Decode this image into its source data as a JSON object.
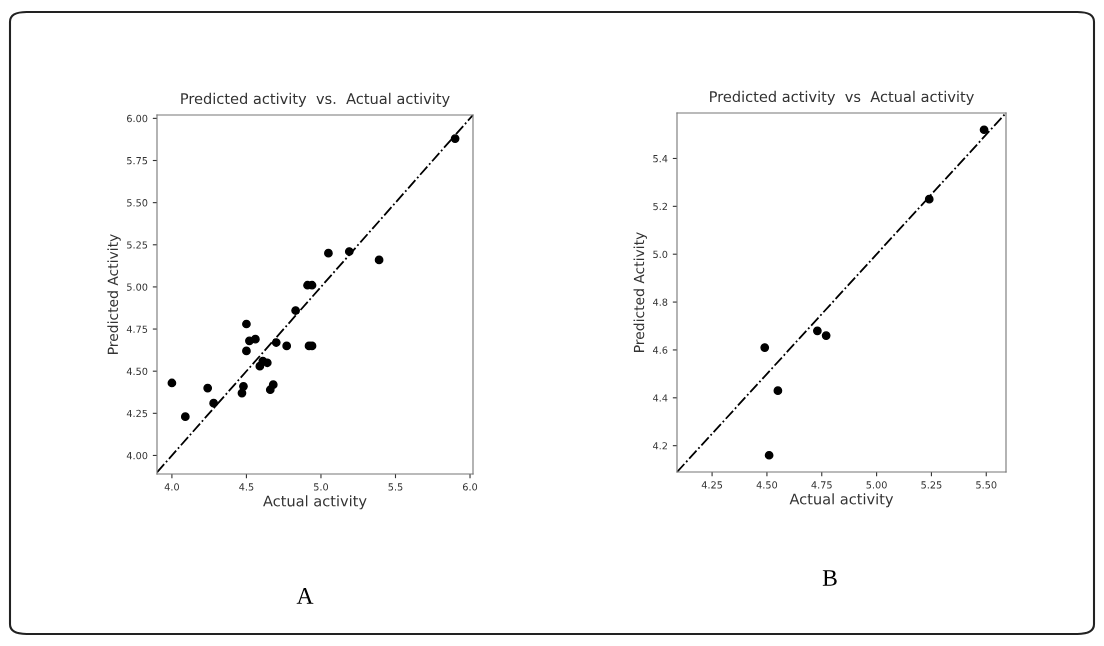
{
  "chart_data": [
    {
      "type": "scatter",
      "title": "Predicted activity  vs.  Actual activity",
      "xlabel": "Actual activity",
      "ylabel": "Predicted Activity",
      "annotations": [
        "A"
      ],
      "xlim": [
        3.9,
        6.02
      ],
      "ylim": [
        3.89,
        6.02
      ],
      "xticks": [
        {
          "value": 4.0,
          "label": "4.0"
        },
        {
          "value": 4.5,
          "label": "4.5"
        },
        {
          "value": 5.0,
          "label": "5.0"
        },
        {
          "value": 5.5,
          "label": "5.5"
        },
        {
          "value": 6.0,
          "label": "6.0"
        }
      ],
      "yticks": [
        {
          "value": 4.0,
          "label": "4.00"
        },
        {
          "value": 4.25,
          "label": "4.25"
        },
        {
          "value": 4.5,
          "label": "4.50"
        },
        {
          "value": 4.75,
          "label": "4.75"
        },
        {
          "value": 5.0,
          "label": "5.00"
        },
        {
          "value": 5.25,
          "label": "5.25"
        },
        {
          "value": 5.5,
          "label": "5.50"
        },
        {
          "value": 5.75,
          "label": "5.75"
        },
        {
          "value": 6.0,
          "label": "6.00"
        }
      ],
      "grid": false,
      "series": [
        {
          "marker": "circle",
          "color": "#000000",
          "x": [
            5.9,
            5.05,
            5.19,
            5.39,
            4.91,
            4.94,
            4.83,
            4.5,
            4.52,
            4.56,
            4.5,
            4.7,
            4.77,
            4.92,
            4.94,
            4.61,
            4.64,
            4.59,
            4.0,
            4.24,
            4.28,
            4.09,
            4.48,
            4.47,
            4.68,
            4.66
          ],
          "values": [
            5.88,
            5.2,
            5.21,
            5.16,
            5.01,
            5.01,
            4.86,
            4.78,
            4.68,
            4.69,
            4.62,
            4.67,
            4.65,
            4.65,
            4.65,
            4.56,
            4.55,
            4.53,
            4.43,
            4.4,
            4.31,
            4.23,
            4.41,
            4.37,
            4.42,
            4.39
          ]
        },
        {
          "type": "line",
          "color": "#000000",
          "line_style": "dashed",
          "x": [
            3.9,
            6.02
          ],
          "values": [
            3.9,
            6.02
          ]
        }
      ]
    },
    {
      "type": "scatter",
      "title": "Predicted activity  vs  Actual activity",
      "xlabel": "Actual activity",
      "ylabel": "Predicted Activity",
      "annotations": [
        "B"
      ],
      "xlim": [
        4.09,
        5.59
      ],
      "ylim": [
        4.09,
        5.59
      ],
      "xticks": [
        {
          "value": 4.25,
          "label": "4.25"
        },
        {
          "value": 4.5,
          "label": "4.50"
        },
        {
          "value": 4.75,
          "label": "4.75"
        },
        {
          "value": 5.0,
          "label": "5.00"
        },
        {
          "value": 5.25,
          "label": "5.25"
        },
        {
          "value": 5.5,
          "label": "5.50"
        }
      ],
      "yticks": [
        4.2,
        4.4,
        4.6,
        4.8,
        {
          "value": 5.0,
          "label": "5.0"
        },
        5.2,
        5.4
      ],
      "grid": false,
      "series": [
        {
          "marker": "circle",
          "color": "#000000",
          "x": [
            5.49,
            5.24,
            4.49,
            4.73,
            4.77,
            4.55,
            4.51
          ],
          "values": [
            5.52,
            5.23,
            4.61,
            4.68,
            4.66,
            4.43,
            4.16
          ]
        },
        {
          "type": "line",
          "color": "#000000",
          "line_style": "dashed",
          "x": [
            4.09,
            5.59
          ],
          "values": [
            4.09,
            5.59
          ]
        }
      ]
    }
  ]
}
